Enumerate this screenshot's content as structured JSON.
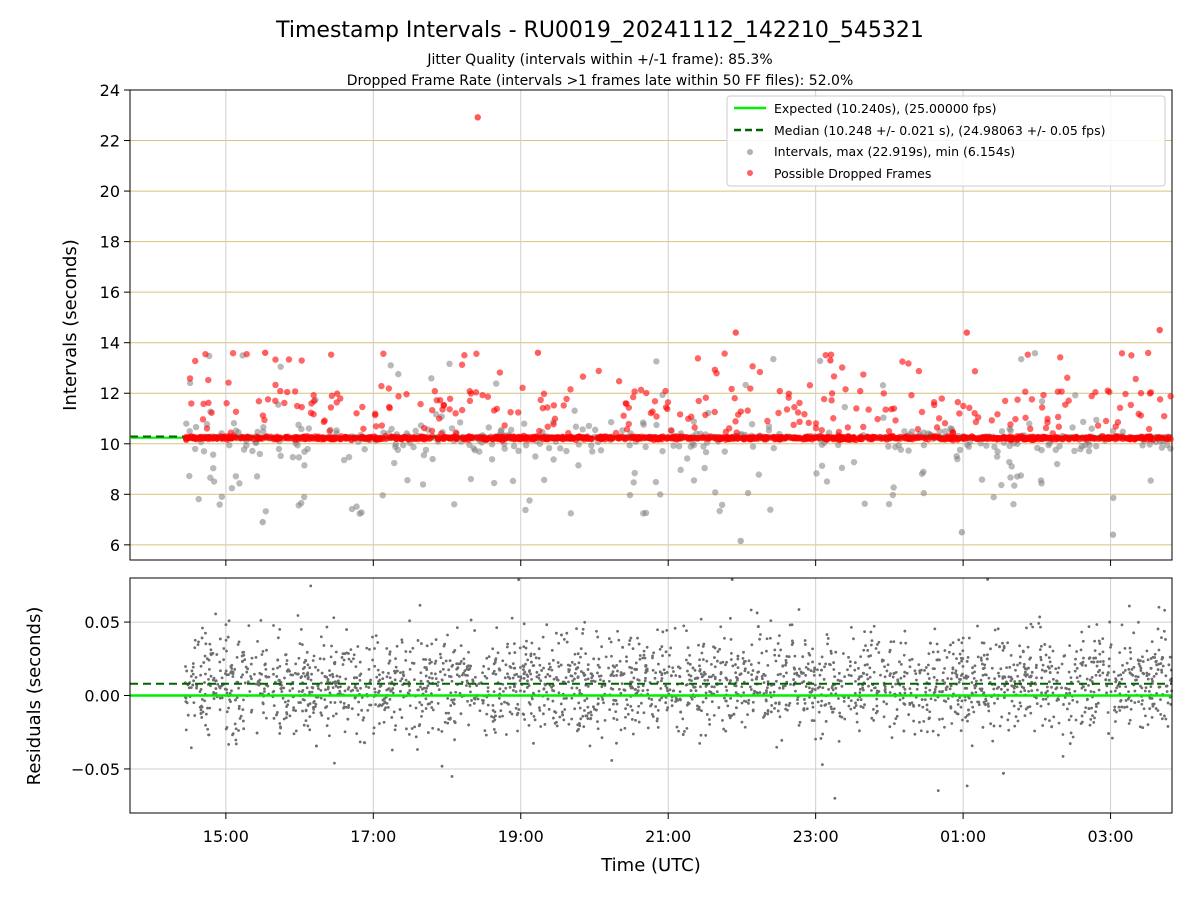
{
  "chart_data": [
    {
      "type": "scatter",
      "title": "Timestamp Intervals - RU0019_20241112_142210_545321",
      "subtitle_1": "Jitter Quality (intervals within +/-1 frame): 85.3%",
      "subtitle_2": "Dropped Frame Rate (intervals >1 frames late within 50 FF files): 52.0%",
      "xlabel": "",
      "ylabel": "Intervals (seconds)",
      "xlim": [
        "13:42",
        "03:50"
      ],
      "ylim": [
        5.4,
        24
      ],
      "y_ticks": [
        6,
        8,
        10,
        12,
        14,
        16,
        18,
        20,
        22,
        24
      ],
      "x_ticks": [
        "15:00",
        "17:00",
        "19:00",
        "21:00",
        "23:00",
        "01:00",
        "03:00"
      ],
      "grid": "horizontal lines goldenrod, vertical lines light gray",
      "legend_position": "top-right",
      "legend": [
        "Expected (10.240s), (25.00000 fps)",
        "Median (10.248 +/- 0.021 s), (24.98063 +/- 0.05 fps)",
        "Intervals, max (22.919s), min (6.154s)",
        "Possible Dropped Frames"
      ],
      "expected_interval": 10.24,
      "median_interval": 10.248,
      "max_interval": 22.919,
      "min_interval": 6.154,
      "time_start": "14:27",
      "time_end": "03:50",
      "series": [
        {
          "name": "Intervals, max (22.919s), min (6.154s)",
          "color": "#808080",
          "marker": "circle"
        },
        {
          "name": "Possible Dropped Frames",
          "color": "#ff0000",
          "marker": "circle"
        }
      ],
      "notable_points": [
        {
          "x": "18:25",
          "y": 22.919,
          "series": "Possible Dropped Frames"
        },
        {
          "x": "21:59",
          "y": 6.154,
          "series": "Intervals, max (22.919s), min (6.154s)"
        },
        {
          "x": "15:30",
          "y": 6.9,
          "series": "Intervals, max (22.919s), min (6.154s)"
        },
        {
          "x": "00:59",
          "y": 6.5,
          "series": "Intervals, max (22.919s), min (6.154s)"
        },
        {
          "x": "03:02",
          "y": 6.4,
          "series": "Intervals, max (22.919s), min (6.154s)"
        },
        {
          "x": "21:55",
          "y": 14.4,
          "series": "Possible Dropped Frames"
        },
        {
          "x": "01:03",
          "y": 14.4,
          "series": "Possible Dropped Frames"
        },
        {
          "x": "03:40",
          "y": 14.5,
          "series": "Possible Dropped Frames"
        },
        {
          "x": "15:32",
          "y": 13.6,
          "series": "Possible Dropped Frames"
        },
        {
          "x": "19:14",
          "y": 13.6,
          "series": "Possible Dropped Frames"
        },
        {
          "x": "23:12",
          "y": 13.3,
          "series": "Possible Dropped Frames"
        }
      ]
    },
    {
      "type": "scatter",
      "xlabel": "Time (UTC)",
      "ylabel": "Residuals (seconds)",
      "xlim": [
        "13:42",
        "03:50"
      ],
      "ylim": [
        -0.08,
        0.08
      ],
      "y_ticks": [
        0.05,
        0.0,
        -0.05
      ],
      "y_tick_labels": [
        "0.05",
        "0.00",
        "−0.05"
      ],
      "x_ticks": [
        "15:00",
        "17:00",
        "19:00",
        "21:00",
        "23:00",
        "01:00",
        "03:00"
      ],
      "grid": "light gray",
      "expected_residual": 0.0,
      "median_residual": 0.008,
      "series": [
        {
          "name": "",
          "color": "#808080",
          "marker": "dot"
        }
      ],
      "residual_spread": {
        "typical_low": -0.03,
        "typical_high": 0.05,
        "center": 0.008
      }
    }
  ]
}
